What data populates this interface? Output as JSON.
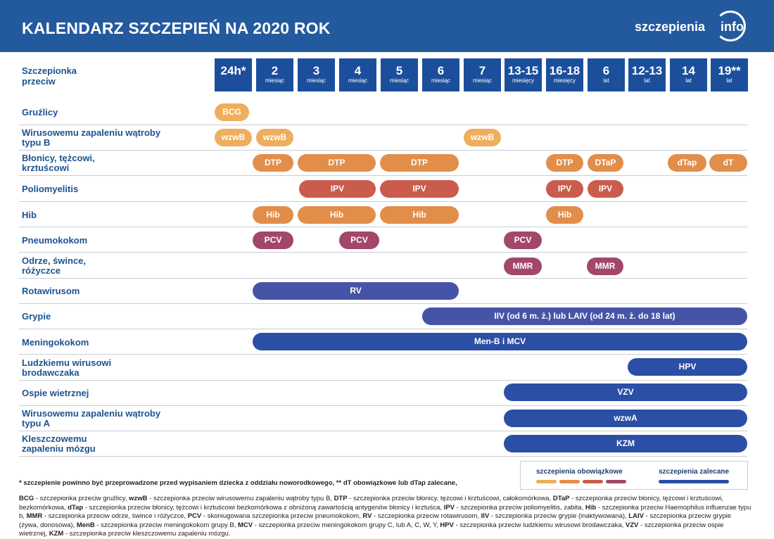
{
  "header": {
    "title": "KALENDARZ SZCZEPIEŃ NA 2020 ROK",
    "logo_text": "szczepienia",
    "logo_suffix": "info"
  },
  "column_header_label": "Szczepionka przeciw",
  "ages": [
    {
      "num": "24h*",
      "unit": ""
    },
    {
      "num": "2",
      "unit": "miesiąc"
    },
    {
      "num": "3",
      "unit": "miesiąc"
    },
    {
      "num": "4",
      "unit": "miesiąc"
    },
    {
      "num": "5",
      "unit": "miesiąc"
    },
    {
      "num": "6",
      "unit": "miesiąc"
    },
    {
      "num": "7",
      "unit": "miesiąc"
    },
    {
      "num": "13-15",
      "unit": "miesięcy"
    },
    {
      "num": "16-18",
      "unit": "miesięcy"
    },
    {
      "num": "6",
      "unit": "lat"
    },
    {
      "num": "12-13",
      "unit": "lat"
    },
    {
      "num": "14",
      "unit": "lat"
    },
    {
      "num": "19**",
      "unit": "lat"
    }
  ],
  "rows": [
    {
      "label": "Gruźlicy",
      "pills": [
        {
          "text": "BCG"
        }
      ]
    },
    {
      "label": "Wirusowemu zapaleniu wątroby typu B",
      "pills": [
        {
          "text": "wzwB"
        },
        {
          "text": "wzwB"
        },
        {
          "text": "wzwB"
        }
      ]
    },
    {
      "label": "Błonicy, tężcowi, krztuścowi",
      "pills": [
        {
          "text": "DTP"
        },
        {
          "text": "DTP"
        },
        {
          "text": "DTP"
        },
        {
          "text": "DTP"
        },
        {
          "text": "DTaP"
        },
        {
          "text": "dTap"
        },
        {
          "text": "dT"
        }
      ]
    },
    {
      "label": "Poliomyelitis",
      "pills": [
        {
          "text": "IPV"
        },
        {
          "text": "IPV"
        },
        {
          "text": "IPV"
        },
        {
          "text": "IPV"
        }
      ]
    },
    {
      "label": "Hib",
      "pills": [
        {
          "text": "Hib"
        },
        {
          "text": "Hib"
        },
        {
          "text": "Hib"
        },
        {
          "text": "Hib"
        }
      ]
    },
    {
      "label": "Pneumokokom",
      "pills": [
        {
          "text": "PCV"
        },
        {
          "text": "PCV"
        },
        {
          "text": "PCV"
        }
      ]
    },
    {
      "label": "Odrze, śwince, różyczce",
      "pills": [
        {
          "text": "MMR"
        },
        {
          "text": "MMR"
        }
      ]
    },
    {
      "label": "Rotawirusom",
      "pills": [
        {
          "text": "RV"
        }
      ]
    },
    {
      "label": "Grypie",
      "pills": [
        {
          "text": "IIV (od 6 m. ż.) lub LAIV (od 24 m. ż. do 18 lat)"
        }
      ]
    },
    {
      "label": "Meningokokom",
      "pills": [
        {
          "text": "Men-B i MCV"
        }
      ]
    },
    {
      "label": "Ludzkiemu wirusowi brodawczaka",
      "pills": [
        {
          "text": "HPV"
        }
      ]
    },
    {
      "label": "Ospie wietrznej",
      "pills": [
        {
          "text": "VZV"
        }
      ]
    },
    {
      "label": "Wirusowemu zapaleniu wątroby typu A",
      "pills": [
        {
          "text": "wzwA"
        }
      ]
    },
    {
      "label": "Kleszczowemu zapaleniu mózgu",
      "pills": [
        {
          "text": "KZM"
        }
      ]
    }
  ],
  "legend": {
    "mandatory": "szczepienia obowiązkowe",
    "recommended": "szczepienia zalecane"
  },
  "colors": {
    "header_bg": "#235a9e",
    "age_box": "#1c4f9b",
    "label_text": "#1b5391",
    "light_orange": "#eeae5d",
    "orange": "#e28e4b",
    "red": "#c95c4d",
    "plum": "#a2476a",
    "indigo": "#4654a8",
    "blue": "#2c4fa6"
  },
  "footnote": "* szczepienie powinno być przeprowadzone przed wypisaniem dziecka z oddziału noworodkowego, ** dT obowiązkowe lub dTap zalecane,",
  "glossary": [
    {
      "abbr": "BCG",
      "desc": " - szczepionka przeciw gruźlicy, "
    },
    {
      "abbr": "wzwB",
      "desc": " - szczepionka przeciw wirusowemu zapaleniu wątroby typu B, "
    },
    {
      "abbr": "DTP",
      "desc": " - szczepionka przeciw błonicy, tężcowi i krztuścowi, całokomórkowa, "
    },
    {
      "abbr": "DTaP",
      "desc": " - szczepionka przeciw błonicy, tężcowi i krztuścowi, bezkomórkowa, "
    },
    {
      "abbr": "dTap",
      "desc": " - szczepionka przeciw błonicy, tężcowi i krztuścowi bezkomórkowa z obniżoną zawartością antygenów błonicy i krztuśca, "
    },
    {
      "abbr": "IPV",
      "desc": " - szczepionka przeciw poliomyelitis, zabita, "
    },
    {
      "abbr": "Hib",
      "desc": " - szczepionka przeciw Haemophilus influenzae typu b, "
    },
    {
      "abbr": "MMR",
      "desc": " - szczepionka przeciw odrze, śwince i różyczce, "
    },
    {
      "abbr": "PCV",
      "desc": " - skoniugowana szczepionka przeciw pneumokokom, "
    },
    {
      "abbr": "RV",
      "desc": " - szczepionka przeciw rotawirusom, "
    },
    {
      "abbr": "IIV",
      "desc": " - szczepionka przeciw grypie (inaktywowana), "
    },
    {
      "abbr": "LAIV",
      "desc": " - szczepionka przeciw grypie (żywa, donosowa), "
    },
    {
      "abbr": "MenB",
      "desc": " - szczepionka przeciw meningokokom grupy B, "
    },
    {
      "abbr": "MCV",
      "desc": " - szczepionka przeciw meningokokom grupy C, lub A, C, W, Y, "
    },
    {
      "abbr": "HPV",
      "desc": " - szczepionka przeciw ludzkiemu wirusowi brodawczaka, "
    },
    {
      "abbr": "VZV",
      "desc": " - szczepionka przeciw ospie wietrznej, "
    },
    {
      "abbr": "KZM",
      "desc": " - szczepionka przeciw kleszczowemu zapaleniu mózgu."
    }
  ]
}
